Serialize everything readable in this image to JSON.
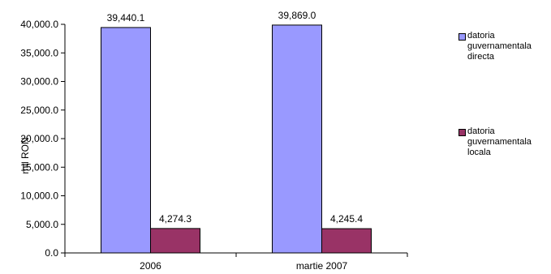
{
  "chart_data": {
    "type": "bar",
    "categories": [
      "2006",
      "martie 2007"
    ],
    "series": [
      {
        "name": "datoria guvernamentala directa",
        "values": [
          39440.1,
          39869.0
        ],
        "color": "#9999ff"
      },
      {
        "name": "datoria guvernamentala locala",
        "values": [
          4274.3,
          4245.4
        ],
        "color": "#993366"
      }
    ],
    "data_labels": [
      [
        "39,440.1",
        "39,869.0"
      ],
      [
        "4,274.3",
        "4,245.4"
      ]
    ],
    "ylabel": "mil RON",
    "ylim": [
      0,
      40000
    ],
    "yticks": [
      0,
      5000,
      10000,
      15000,
      20000,
      25000,
      30000,
      35000,
      40000
    ],
    "ytick_labels": [
      "0.0",
      "5,000.0",
      "10,000.0",
      "15,000.0",
      "20,000.0",
      "25,000.0",
      "30,000.0",
      "35,000.0",
      "40,000.0"
    ],
    "grid": false,
    "legend_position": "right"
  }
}
